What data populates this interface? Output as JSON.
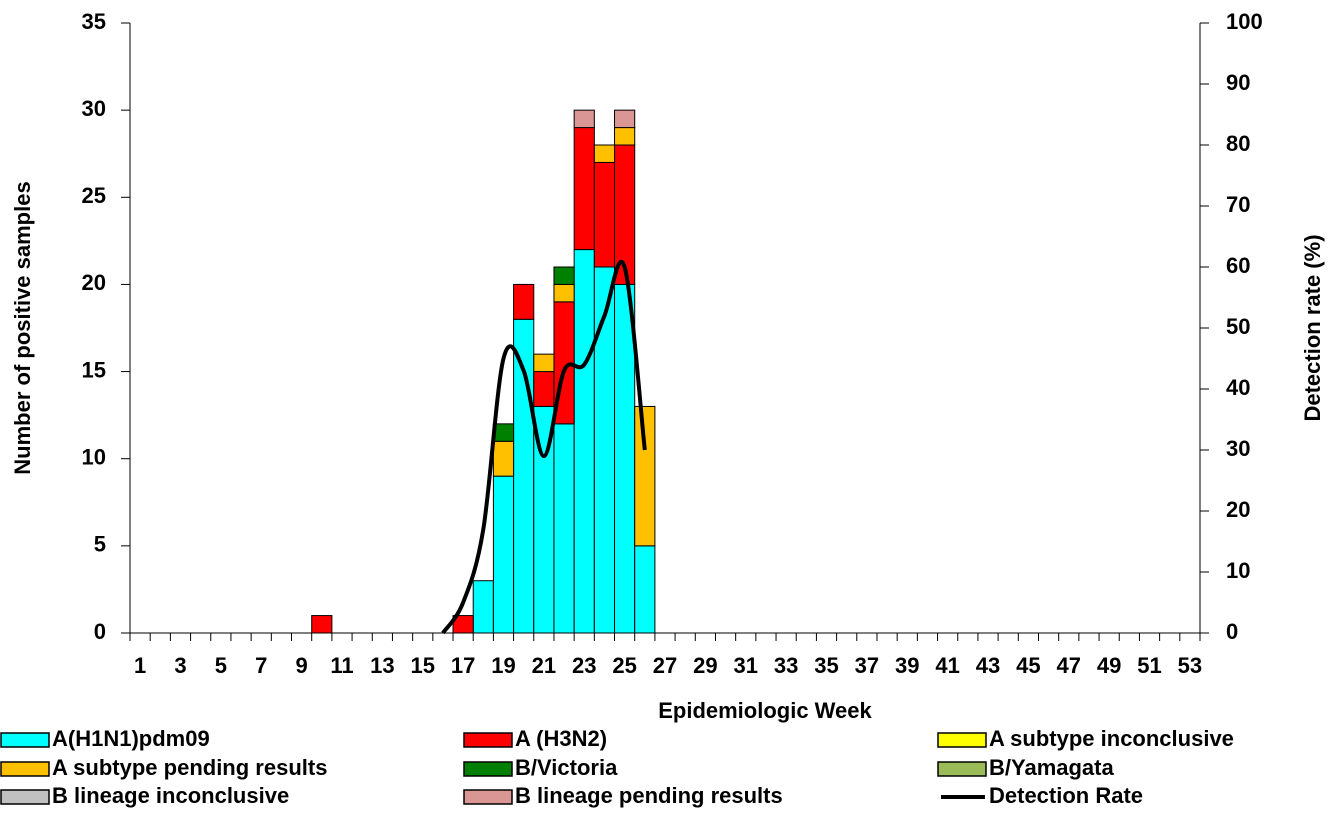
{
  "chart_data": {
    "type": "bar",
    "stacked": true,
    "x_label": "Epidemiologic Week",
    "y_label": "Number of positive samples",
    "y2_label": "Detection rate (%)",
    "categories": [
      1,
      null,
      3,
      null,
      5,
      null,
      7,
      null,
      9,
      null,
      11,
      null,
      13,
      null,
      15,
      null,
      17,
      null,
      19,
      null,
      21,
      null,
      23,
      null,
      25,
      null,
      27,
      null,
      29,
      null,
      31,
      null,
      33,
      null,
      35,
      null,
      37,
      null,
      39,
      null,
      41,
      null,
      43,
      null,
      45,
      null,
      47,
      null,
      49,
      null,
      51,
      null,
      53
    ],
    "ylim": [
      0,
      35
    ],
    "yticks": [
      0,
      5,
      10,
      15,
      20,
      25,
      30,
      35
    ],
    "y2lim": [
      0,
      100
    ],
    "y2ticks": [
      0,
      10,
      20,
      30,
      40,
      50,
      60,
      70,
      80,
      90,
      100
    ],
    "series": [
      {
        "name": "A(H1N1)pdm09",
        "color": "#00FFFF",
        "values": [
          0,
          0,
          0,
          0,
          0,
          0,
          0,
          0,
          0,
          0,
          0,
          0,
          0,
          0,
          0,
          0,
          0,
          3,
          9,
          18,
          13,
          12,
          22,
          21,
          20,
          5,
          0,
          0,
          0,
          0,
          0,
          0,
          0,
          0,
          0,
          0,
          0,
          0,
          0,
          0,
          0,
          0,
          0,
          0,
          0,
          0,
          0,
          0,
          0,
          0,
          0,
          0,
          0
        ]
      },
      {
        "name": "A (H3N2)",
        "color": "#FF0000",
        "values": [
          0,
          0,
          0,
          0,
          0,
          0,
          0,
          0,
          0,
          1,
          0,
          0,
          0,
          0,
          0,
          0,
          1,
          0,
          0,
          2,
          2,
          7,
          7,
          6,
          8,
          0,
          0,
          0,
          0,
          0,
          0,
          0,
          0,
          0,
          0,
          0,
          0,
          0,
          0,
          0,
          0,
          0,
          0,
          0,
          0,
          0,
          0,
          0,
          0,
          0,
          0,
          0,
          0
        ]
      },
      {
        "name": "A subtype inconclusive",
        "color": "#FFFF00",
        "values": [
          0,
          0,
          0,
          0,
          0,
          0,
          0,
          0,
          0,
          0,
          0,
          0,
          0,
          0,
          0,
          0,
          0,
          0,
          0,
          0,
          0,
          0,
          0,
          0,
          0,
          0,
          0,
          0,
          0,
          0,
          0,
          0,
          0,
          0,
          0,
          0,
          0,
          0,
          0,
          0,
          0,
          0,
          0,
          0,
          0,
          0,
          0,
          0,
          0,
          0,
          0,
          0,
          0
        ]
      },
      {
        "name": "A subtype pending results",
        "color": "#FFC000",
        "values": [
          0,
          0,
          0,
          0,
          0,
          0,
          0,
          0,
          0,
          0,
          0,
          0,
          0,
          0,
          0,
          0,
          0,
          0,
          2,
          0,
          1,
          1,
          0,
          1,
          1,
          8,
          0,
          0,
          0,
          0,
          0,
          0,
          0,
          0,
          0,
          0,
          0,
          0,
          0,
          0,
          0,
          0,
          0,
          0,
          0,
          0,
          0,
          0,
          0,
          0,
          0,
          0,
          0
        ]
      },
      {
        "name": "B/Victoria",
        "color": "#008000",
        "values": [
          0,
          0,
          0,
          0,
          0,
          0,
          0,
          0,
          0,
          0,
          0,
          0,
          0,
          0,
          0,
          0,
          0,
          0,
          1,
          0,
          0,
          1,
          0,
          0,
          0,
          0,
          0,
          0,
          0,
          0,
          0,
          0,
          0,
          0,
          0,
          0,
          0,
          0,
          0,
          0,
          0,
          0,
          0,
          0,
          0,
          0,
          0,
          0,
          0,
          0,
          0,
          0,
          0
        ]
      },
      {
        "name": "B/Yamagata",
        "color": "#9BBB59",
        "values": [
          0,
          0,
          0,
          0,
          0,
          0,
          0,
          0,
          0,
          0,
          0,
          0,
          0,
          0,
          0,
          0,
          0,
          0,
          0,
          0,
          0,
          0,
          0,
          0,
          0,
          0,
          0,
          0,
          0,
          0,
          0,
          0,
          0,
          0,
          0,
          0,
          0,
          0,
          0,
          0,
          0,
          0,
          0,
          0,
          0,
          0,
          0,
          0,
          0,
          0,
          0,
          0,
          0
        ]
      },
      {
        "name": "B lineage inconclusive",
        "color": "#C0C0C0",
        "values": [
          0,
          0,
          0,
          0,
          0,
          0,
          0,
          0,
          0,
          0,
          0,
          0,
          0,
          0,
          0,
          0,
          0,
          0,
          0,
          0,
          0,
          0,
          0,
          0,
          0,
          0,
          0,
          0,
          0,
          0,
          0,
          0,
          0,
          0,
          0,
          0,
          0,
          0,
          0,
          0,
          0,
          0,
          0,
          0,
          0,
          0,
          0,
          0,
          0,
          0,
          0,
          0,
          0
        ]
      },
      {
        "name": "B lineage pending results",
        "color": "#D99694",
        "values": [
          0,
          0,
          0,
          0,
          0,
          0,
          0,
          0,
          0,
          0,
          0,
          0,
          0,
          0,
          0,
          0,
          0,
          0,
          0,
          0,
          0,
          0,
          1,
          0,
          1,
          0,
          0,
          0,
          0,
          0,
          0,
          0,
          0,
          0,
          0,
          0,
          0,
          0,
          0,
          0,
          0,
          0,
          0,
          0,
          0,
          0,
          0,
          0,
          0,
          0,
          0,
          0,
          0
        ]
      },
      {
        "name": "Detection Rate",
        "color": "#000000",
        "type": "line",
        "axis": "y2",
        "values": [
          null,
          null,
          null,
          null,
          null,
          null,
          null,
          null,
          null,
          null,
          null,
          null,
          null,
          null,
          null,
          0,
          5,
          17,
          45,
          43,
          29,
          43,
          44,
          52,
          60,
          30,
          null,
          null,
          null,
          null,
          null,
          null,
          null,
          null,
          null,
          null,
          null,
          null,
          null,
          null,
          null,
          null,
          null,
          null,
          null,
          null,
          null,
          null,
          null,
          null,
          null,
          null,
          null
        ]
      }
    ]
  }
}
